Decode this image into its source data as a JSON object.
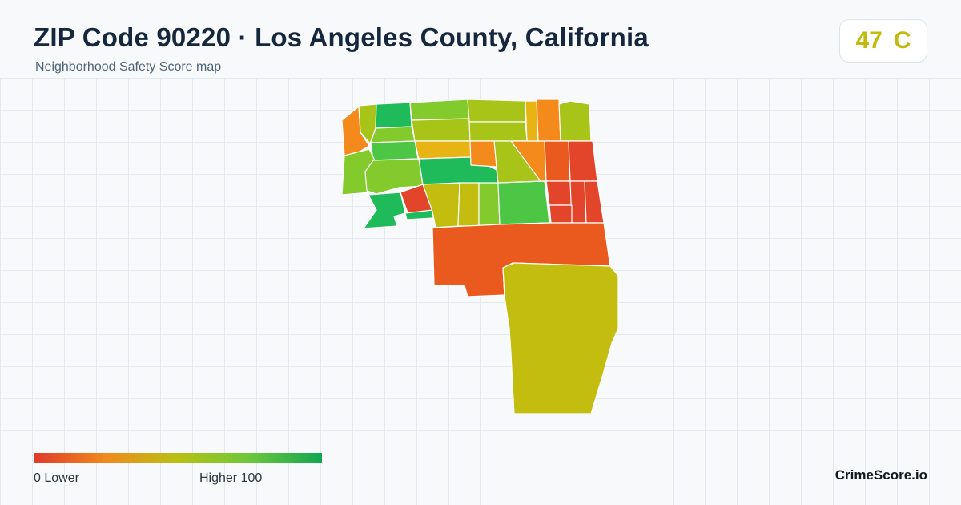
{
  "header": {
    "title": "ZIP Code 90220 · Los Angeles County, California",
    "subtitle": "Neighborhood Safety Score map"
  },
  "score_badge": {
    "score": "47",
    "grade": "C",
    "color": "#c2bb0f"
  },
  "legend": {
    "min_label": "0  Lower",
    "max_label": "Higher  100",
    "gradient_colors": [
      "#e03a2b",
      "#f08a1e",
      "#b8c012",
      "#6cc83a",
      "#11a552"
    ]
  },
  "brand": "CrimeScore.io",
  "map": {
    "colors": {
      "red": "#e2452a",
      "orange_red": "#ea5a1f",
      "orange": "#f48a1c",
      "amber": "#e7b414",
      "olive": "#c3bd10",
      "yellow_green": "#a8c418",
      "light_green": "#83cb2c",
      "green": "#4cc644",
      "dark_green": "#1fbb5b"
    }
  }
}
